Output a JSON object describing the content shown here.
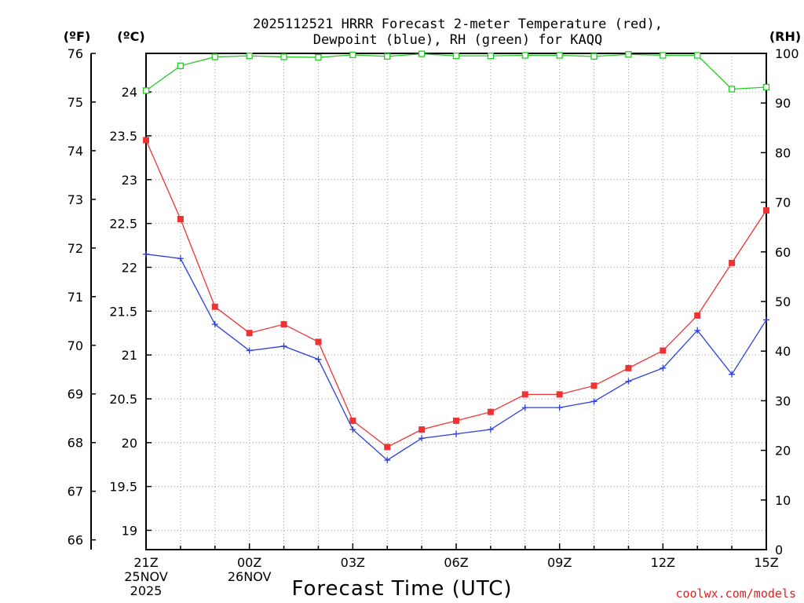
{
  "chart_data": {
    "type": "line",
    "title": [
      "2025112521 HRRR Forecast 2-meter Temperature (red),",
      "Dewpoint (blue), RH (green) for KAQQ"
    ],
    "xlabel": "Forecast Time (UTC)",
    "credit": "coolwx.com/models",
    "axes": {
      "fahrenheit": {
        "unit_label": "(ºF)",
        "range": [
          65.8,
          76
        ],
        "ticks": [
          76,
          75,
          74,
          73,
          72,
          71,
          70,
          69,
          68,
          67,
          66
        ]
      },
      "celsius": {
        "unit_label": "(ºC)",
        "range": [
          18.78,
          24.44
        ],
        "ticks": [
          "24",
          "23.5",
          "23",
          "22.5",
          "22",
          "21.5",
          "21",
          "20.5",
          "20",
          "19.5",
          "19"
        ]
      },
      "rh": {
        "unit_label": "(RH)",
        "range": [
          0,
          100
        ],
        "ticks": [
          100,
          90,
          80,
          70,
          60,
          50,
          40,
          30,
          20,
          10,
          0
        ]
      }
    },
    "x_ticks": [
      {
        "hour": 0,
        "lines": [
          "21Z",
          "25NOV",
          "2025"
        ]
      },
      {
        "hour": 3,
        "lines": [
          "00Z",
          "26NOV"
        ]
      },
      {
        "hour": 6,
        "lines": [
          "03Z"
        ]
      },
      {
        "hour": 9,
        "lines": [
          "06Z"
        ]
      },
      {
        "hour": 12,
        "lines": [
          "09Z"
        ]
      },
      {
        "hour": 15,
        "lines": [
          "12Z"
        ]
      },
      {
        "hour": 18,
        "lines": [
          "15Z"
        ]
      }
    ],
    "x_range": [
      0,
      18
    ],
    "series": [
      {
        "name": "Temperature",
        "color": "red",
        "hex": "#ee3333",
        "marker": "square-filled",
        "axis": "celsius",
        "values": [
          23.45,
          22.55,
          21.55,
          21.25,
          21.35,
          21.15,
          20.25,
          19.95,
          20.15,
          20.25,
          20.35,
          20.55,
          20.55,
          20.65,
          20.85,
          21.05,
          21.45,
          22.05,
          22.65
        ]
      },
      {
        "name": "Dewpoint",
        "color": "blue",
        "hex": "#2b3fe0",
        "marker": "plus",
        "axis": "celsius",
        "values": [
          22.15,
          22.1,
          21.35,
          21.05,
          21.1,
          20.95,
          20.15,
          19.8,
          20.05,
          20.1,
          20.15,
          20.4,
          20.4,
          20.47,
          20.7,
          20.85,
          21.28,
          20.78,
          21.4
        ]
      },
      {
        "name": "RH",
        "color": "green",
        "hex": "#22cc22",
        "marker": "square-open",
        "axis": "rh",
        "values": [
          92.5,
          97.5,
          99.3,
          99.5,
          99.3,
          99.2,
          99.7,
          99.4,
          99.9,
          99.5,
          99.5,
          99.6,
          99.6,
          99.4,
          99.8,
          99.6,
          99.6,
          92.8,
          93.2
        ]
      }
    ]
  }
}
